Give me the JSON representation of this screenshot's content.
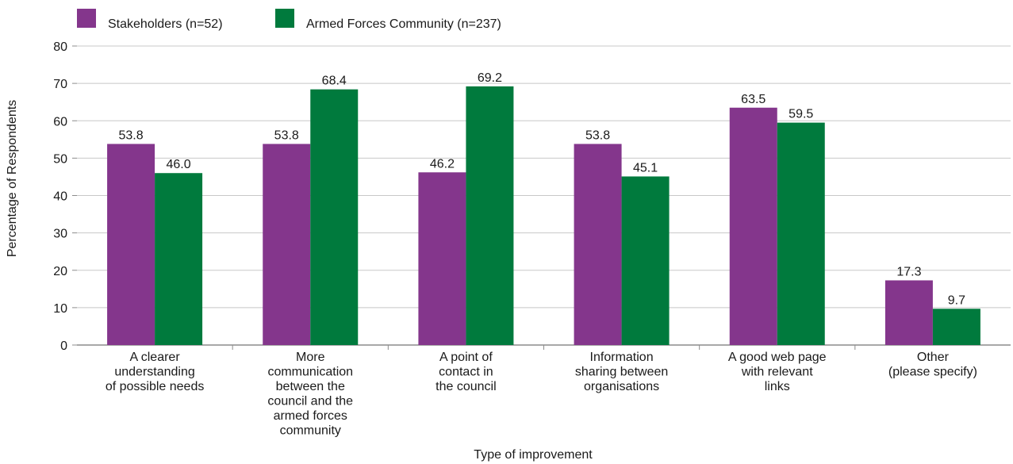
{
  "chart_data": {
    "type": "bar",
    "title": "",
    "xlabel": "Type of improvement",
    "ylabel": "Percentage of Respondents",
    "ylim": [
      0,
      80
    ],
    "yticks": [
      0,
      10,
      20,
      30,
      40,
      50,
      60,
      70,
      80
    ],
    "grid": true,
    "legend_position": "top-left",
    "categories": [
      [
        "A clearer",
        "understanding",
        "of possible needs"
      ],
      [
        "More",
        "communication",
        "between the",
        "council and the",
        "armed forces",
        "community"
      ],
      [
        "A point of",
        "contact in",
        "the council"
      ],
      [
        "Information",
        "sharing between",
        "organisations"
      ],
      [
        "A good web page",
        "with relevant",
        "links"
      ],
      [
        "Other",
        "(please specify)"
      ]
    ],
    "series": [
      {
        "name": "Stakeholders (n=52)",
        "color": "#84368c",
        "values": [
          53.8,
          53.8,
          46.2,
          53.8,
          63.5,
          17.3
        ]
      },
      {
        "name": "Armed Forces Community (n=237)",
        "color": "#007a3d",
        "values": [
          46.0,
          68.4,
          69.2,
          45.1,
          59.5,
          9.7
        ]
      }
    ]
  }
}
